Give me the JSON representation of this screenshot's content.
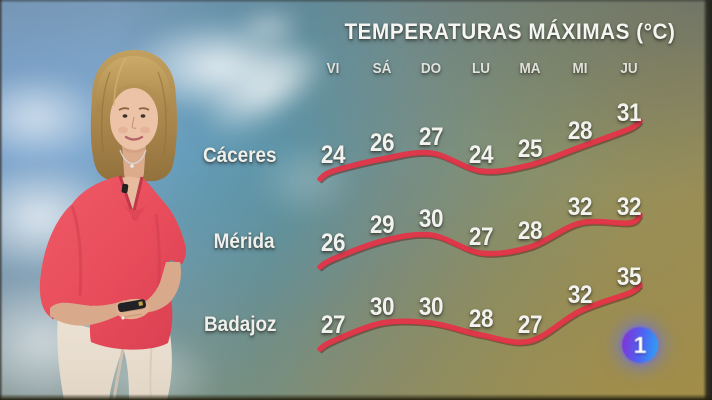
{
  "broadcast": {
    "title": "TEMPERATURAS MÁXIMAS (°C)"
  },
  "chart_data": {
    "type": "line",
    "title": "TEMPERATURAS MÁXIMAS (°C)",
    "unit": "°C",
    "categories": [
      "VI",
      "SÁ",
      "DO",
      "LU",
      "MA",
      "MI",
      "JU"
    ],
    "series": [
      {
        "name": "Cáceres",
        "values": [
          24,
          26,
          27,
          24,
          25,
          28,
          31
        ]
      },
      {
        "name": "Mérida",
        "values": [
          26,
          29,
          30,
          27,
          28,
          32,
          32
        ]
      },
      {
        "name": "Badajoz",
        "values": [
          27,
          30,
          30,
          28,
          27,
          32,
          35
        ]
      }
    ],
    "line_color": "#e63147",
    "line_shadow_color": "#5f2d22",
    "value_label_color": "#f2f2ee",
    "grid": false,
    "legend_position": "row-labels-left",
    "value_range": [
      24,
      35
    ]
  },
  "logo": {
    "text": "1"
  }
}
